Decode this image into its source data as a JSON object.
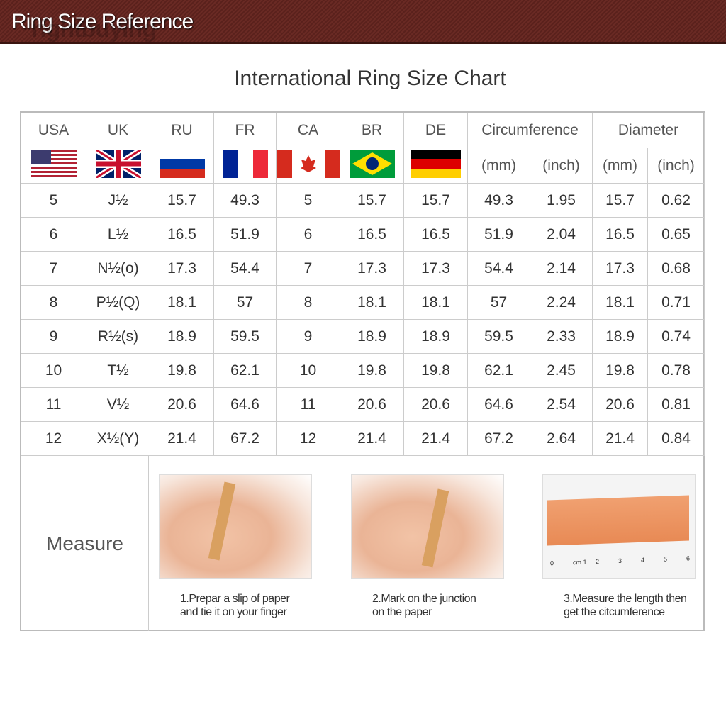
{
  "banner": {
    "title": "Ring Size Reference",
    "watermark": "rightbuying"
  },
  "title": "International Ring Size Chart",
  "columns": [
    "USA",
    "UK",
    "RU",
    "FR",
    "CA",
    "BR",
    "DE"
  ],
  "group_headers": {
    "circumference": "Circumference",
    "diameter": "Diameter"
  },
  "units": [
    "(mm)",
    "(inch)",
    "(mm)",
    "(inch)"
  ],
  "flags": [
    "usa-flag",
    "uk-flag",
    "russia-flag",
    "france-flag",
    "canada-flag",
    "brazil-flag",
    "germany-flag"
  ],
  "rows": [
    [
      "5",
      "J½",
      "15.7",
      "49.3",
      "5",
      "15.7",
      "15.7",
      "49.3",
      "1.95",
      "15.7",
      "0.62"
    ],
    [
      "6",
      "L½",
      "16.5",
      "51.9",
      "6",
      "16.5",
      "16.5",
      "51.9",
      "2.04",
      "16.5",
      "0.65"
    ],
    [
      "7",
      "N½(o)",
      "17.3",
      "54.4",
      "7",
      "17.3",
      "17.3",
      "54.4",
      "2.14",
      "17.3",
      "0.68"
    ],
    [
      "8",
      "P½(Q)",
      "18.1",
      "57",
      "8",
      "18.1",
      "18.1",
      "57",
      "2.24",
      "18.1",
      "0.71"
    ],
    [
      "9",
      "R½(s)",
      "18.9",
      "59.5",
      "9",
      "18.9",
      "18.9",
      "59.5",
      "2.33",
      "18.9",
      "0.74"
    ],
    [
      "10",
      "T½",
      "19.8",
      "62.1",
      "10",
      "19.8",
      "19.8",
      "62.1",
      "2.45",
      "19.8",
      "0.78"
    ],
    [
      "11",
      "V½",
      "20.6",
      "64.6",
      "11",
      "20.6",
      "20.6",
      "64.6",
      "2.54",
      "20.6",
      "0.81"
    ],
    [
      "12",
      "X½(Y)",
      "21.4",
      "67.2",
      "12",
      "21.4",
      "21.4",
      "67.2",
      "2.64",
      "21.4",
      "0.84"
    ]
  ],
  "measure": {
    "label": "Measure",
    "steps": [
      {
        "line1": "1.Prepar a slip of paper",
        "line2": "and tie it on your finger"
      },
      {
        "line1": "2.Mark on the junction",
        "line2": "on the paper"
      },
      {
        "line1": "3.Measure the length then",
        "line2": "get the citcumference"
      }
    ],
    "ruler_numbers": [
      "0",
      "cm 1",
      "2",
      "3",
      "4",
      "5",
      "6"
    ]
  }
}
